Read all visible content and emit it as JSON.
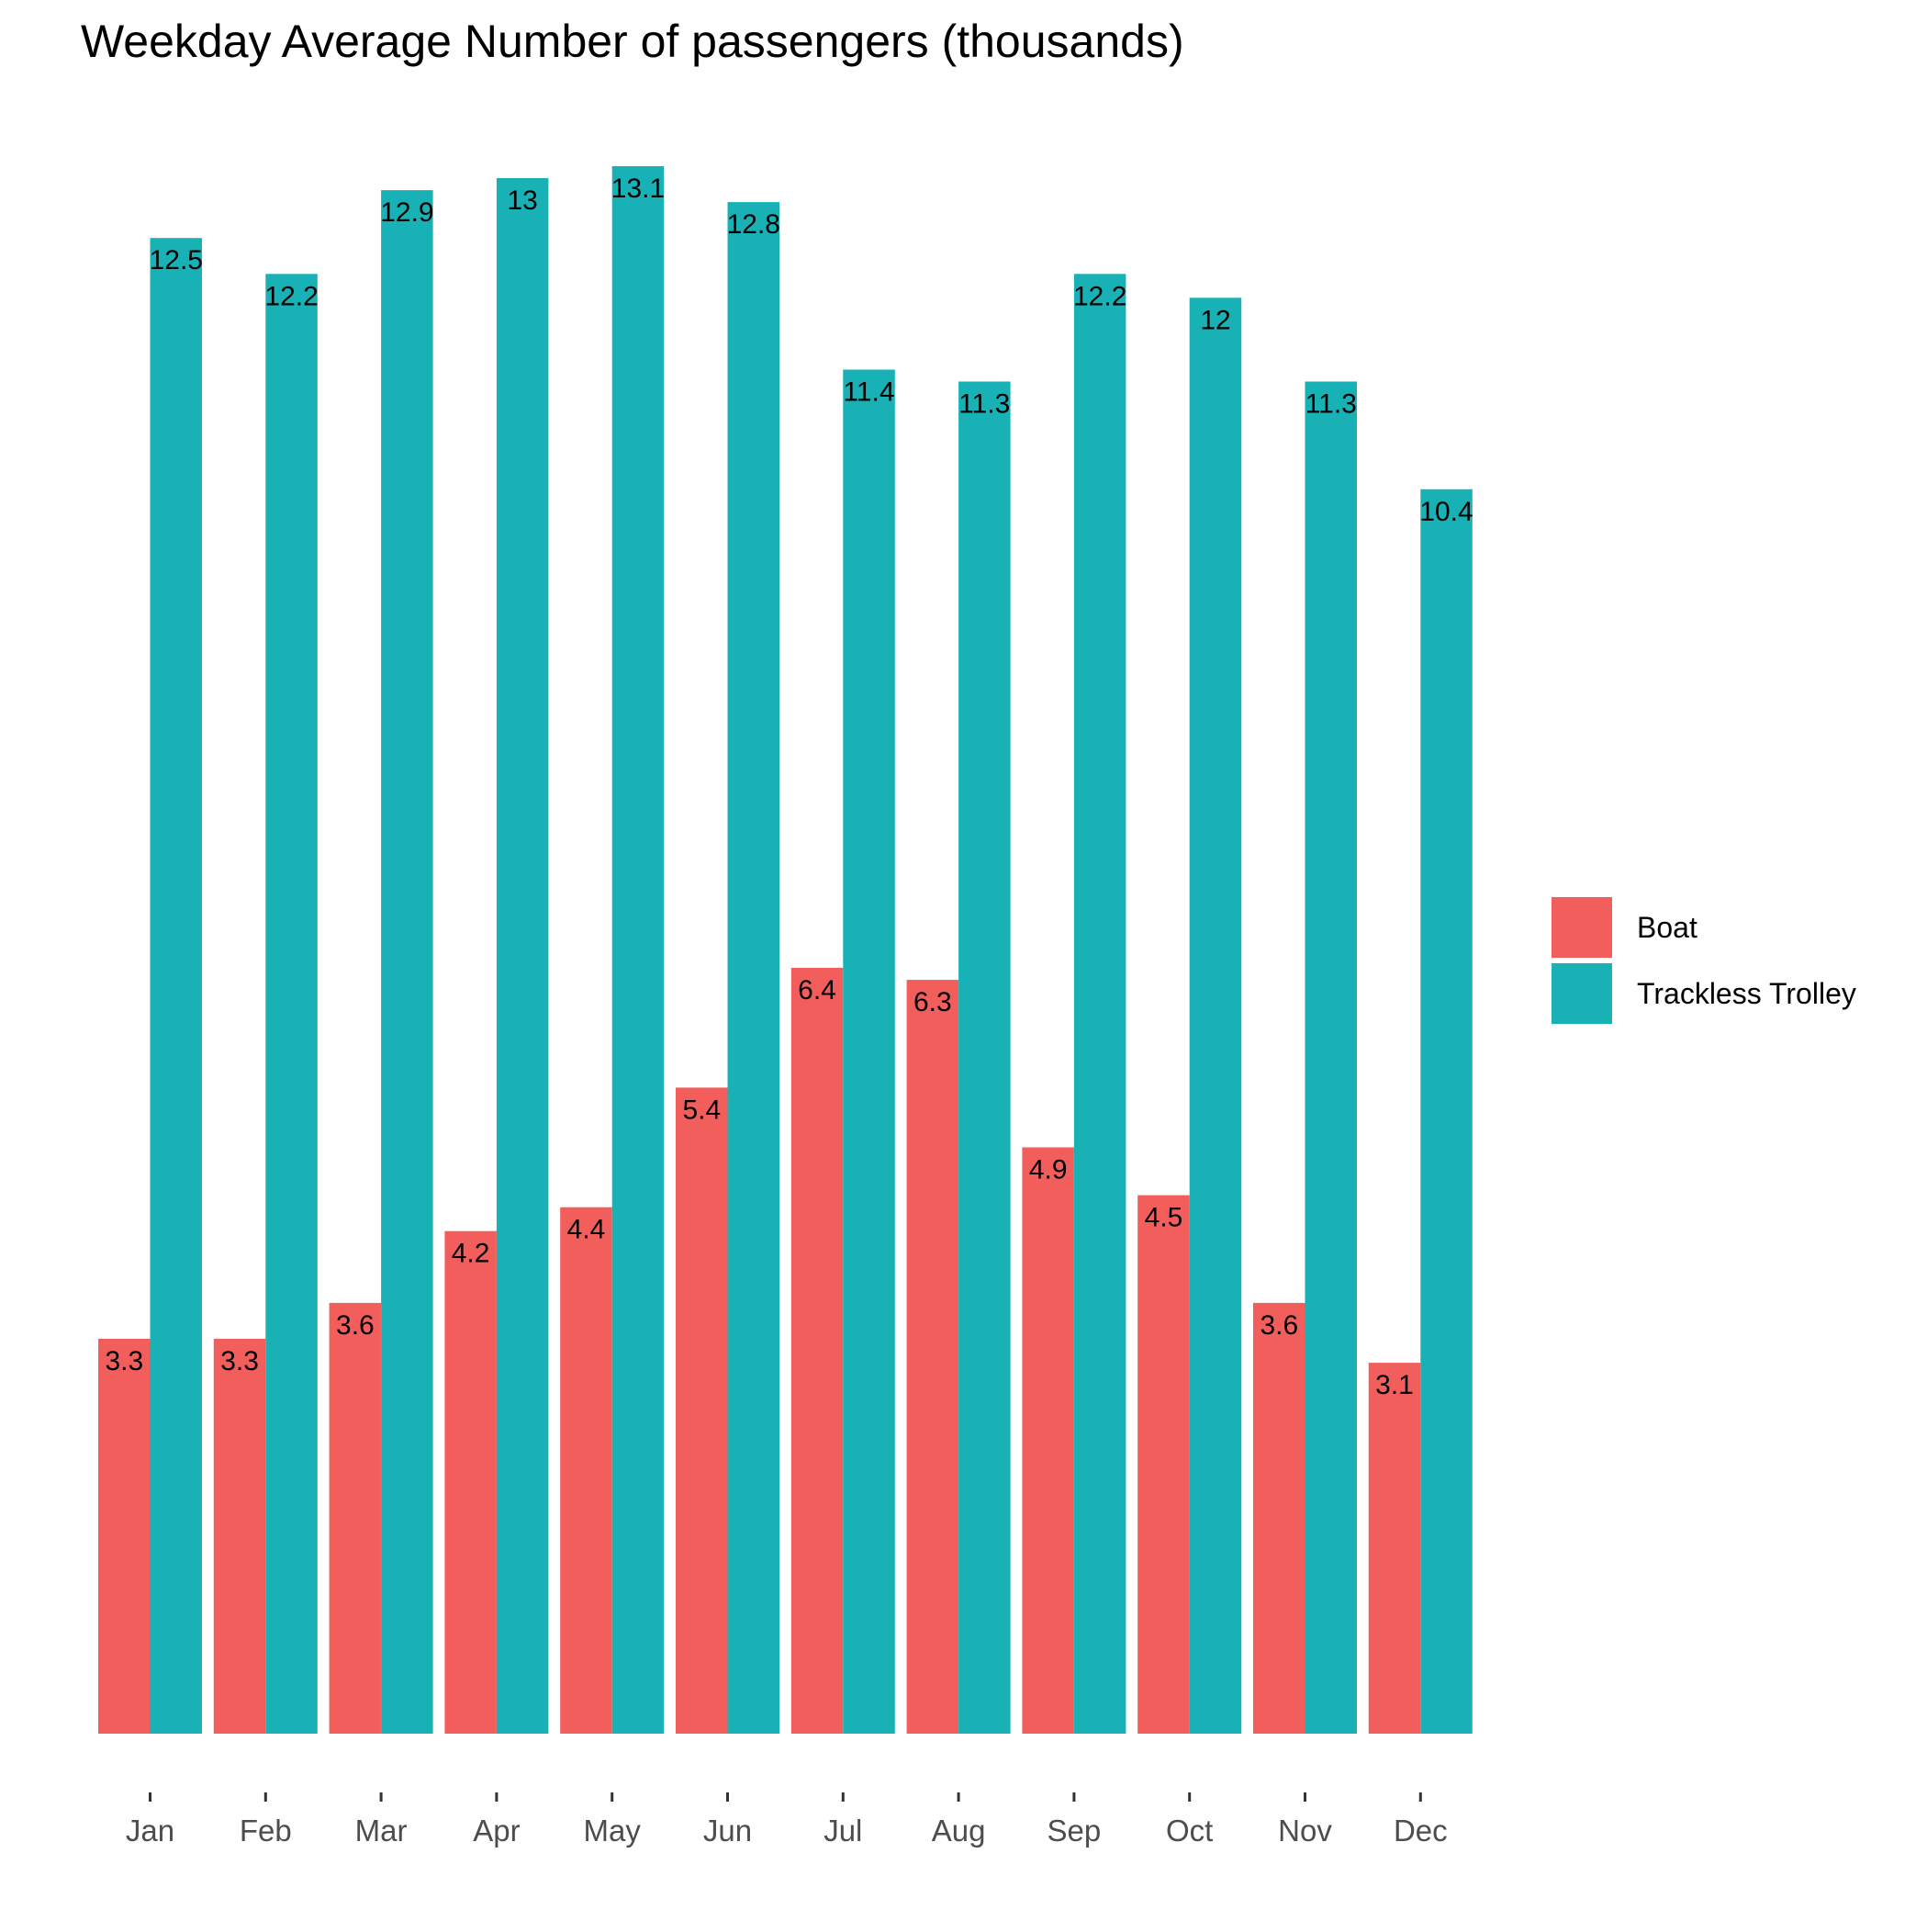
{
  "chart_data": {
    "type": "bar",
    "title": "Weekday Average Number of passengers (thousands)",
    "xlabel": "",
    "ylabel": "",
    "categories": [
      "Jan",
      "Feb",
      "Mar",
      "Apr",
      "May",
      "Jun",
      "Jul",
      "Aug",
      "Sep",
      "Oct",
      "Nov",
      "Dec"
    ],
    "series": [
      {
        "name": "Boat",
        "color": "#F25E5B",
        "values": [
          3.3,
          3.3,
          3.6,
          4.2,
          4.4,
          5.4,
          6.4,
          6.3,
          4.9,
          4.5,
          3.6,
          3.1
        ],
        "labels": [
          "3.3",
          "3.3",
          "3.6",
          "4.2",
          "4.4",
          "5.4",
          "6.4",
          "6.3",
          "4.9",
          "4.5",
          "3.6",
          "3.1"
        ]
      },
      {
        "name": "Trackless Trolley",
        "color": "#18B2B6",
        "values": [
          12.5,
          12.2,
          12.9,
          13.0,
          13.1,
          12.8,
          11.4,
          11.3,
          12.2,
          12.0,
          11.3,
          10.4
        ],
        "labels": [
          "12.5",
          "12.2",
          "12.9",
          "13",
          "13.1",
          "12.8",
          "11.4",
          "11.3",
          "12.2",
          "12",
          "11.3",
          "10.4"
        ]
      }
    ],
    "ylim": [
      0,
      13.1
    ],
    "grid": false,
    "y_axis_shown": false,
    "legend_position": "right"
  }
}
